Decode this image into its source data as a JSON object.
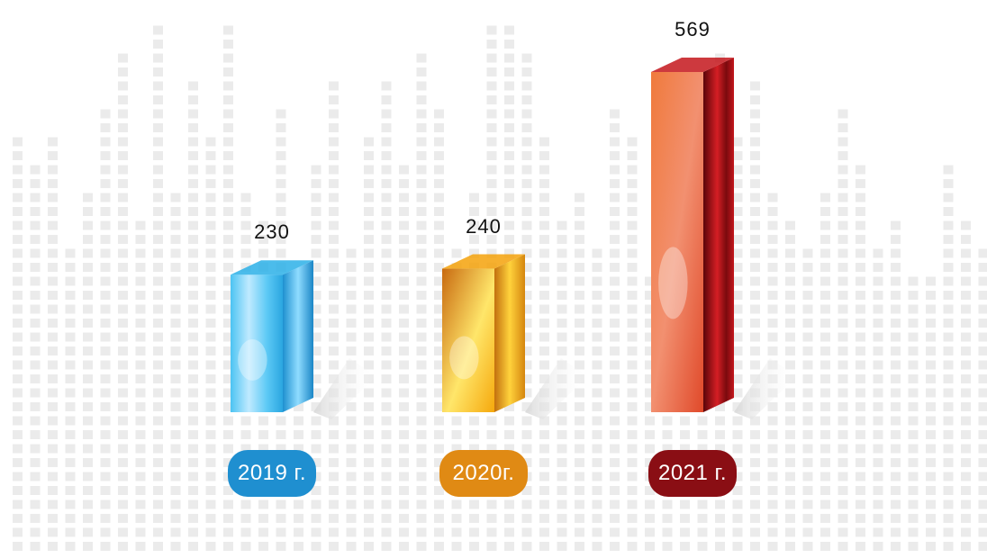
{
  "chart_data": {
    "type": "bar",
    "categories": [
      "2019 г.",
      "2020г.",
      "2021 г."
    ],
    "values": [
      230,
      240,
      569
    ],
    "value_labels": [
      "230",
      "240",
      "569"
    ],
    "title": "",
    "xlabel": "",
    "ylabel": "",
    "ylim": [
      0,
      569
    ],
    "grid": false,
    "legend": "none",
    "bar_style": "3d-glass",
    "colors": {
      "bars": [
        "#2bb0e8",
        "#f5a20a",
        "#c4161c"
      ],
      "pills": [
        "#1f8fd0",
        "#e08a14",
        "#8a0e14"
      ],
      "background_pattern": "#ebebeb"
    }
  }
}
